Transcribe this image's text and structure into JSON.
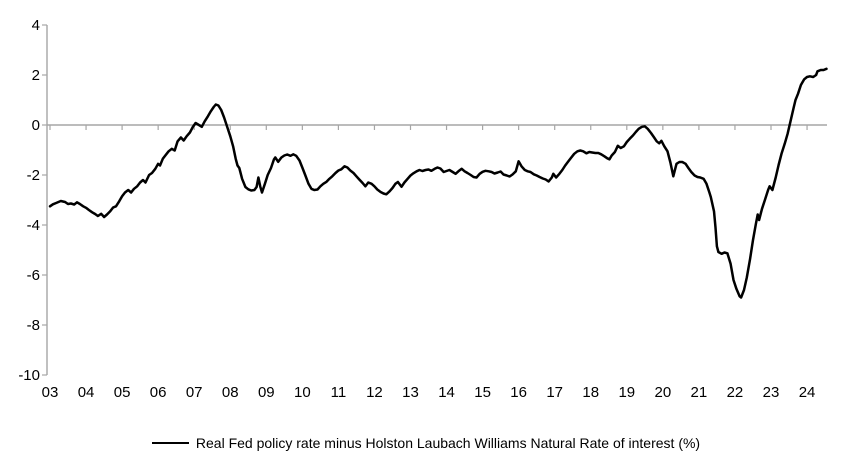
{
  "figure": {
    "background": "#ffffff",
    "axis_color": "#a6a6a6",
    "text_color": "#000000"
  },
  "legend": {
    "label": "Real Fed policy rate minus Holston Laubach Williams Natural Rate of interest (%)"
  },
  "chart_data": {
    "type": "line",
    "title": "",
    "xlabel": "",
    "ylabel": "",
    "grid": "zero-line-only",
    "legend_position": "bottom-center",
    "x_tick_labels": [
      "03",
      "04",
      "05",
      "06",
      "07",
      "08",
      "09",
      "10",
      "11",
      "12",
      "13",
      "14",
      "15",
      "16",
      "17",
      "18",
      "19",
      "20",
      "21",
      "22",
      "23",
      "24"
    ],
    "x_tick_years": [
      2003,
      2004,
      2005,
      2006,
      2007,
      2008,
      2009,
      2010,
      2011,
      2012,
      2013,
      2014,
      2015,
      2016,
      2017,
      2018,
      2019,
      2020,
      2021,
      2022,
      2023,
      2024
    ],
    "y_ticks": [
      4,
      2,
      0,
      -2,
      -4,
      -6,
      -8,
      -10
    ],
    "y_tick_labels": [
      "4",
      "2",
      "0",
      "-2",
      "-4",
      "-6",
      "-8",
      "-10"
    ],
    "ylim": [
      -10,
      4
    ],
    "xlim": [
      2003,
      2024.6
    ],
    "series": [
      {
        "name": "Real Fed policy rate minus Holston Laubach Williams Natural Rate of interest (%)",
        "color": "#000000",
        "line_width": 2.5,
        "points": [
          [
            2003.0,
            -3.25
          ],
          [
            2003.08,
            -3.17
          ],
          [
            2003.17,
            -3.12
          ],
          [
            2003.3,
            -3.04
          ],
          [
            2003.42,
            -3.08
          ],
          [
            2003.5,
            -3.16
          ],
          [
            2003.58,
            -3.14
          ],
          [
            2003.67,
            -3.18
          ],
          [
            2003.75,
            -3.09
          ],
          [
            2003.83,
            -3.16
          ],
          [
            2003.92,
            -3.25
          ],
          [
            2004.0,
            -3.31
          ],
          [
            2004.08,
            -3.4
          ],
          [
            2004.17,
            -3.49
          ],
          [
            2004.25,
            -3.56
          ],
          [
            2004.33,
            -3.64
          ],
          [
            2004.42,
            -3.55
          ],
          [
            2004.5,
            -3.68
          ],
          [
            2004.58,
            -3.58
          ],
          [
            2004.67,
            -3.45
          ],
          [
            2004.75,
            -3.3
          ],
          [
            2004.83,
            -3.25
          ],
          [
            2004.92,
            -3.05
          ],
          [
            2005.0,
            -2.85
          ],
          [
            2005.08,
            -2.7
          ],
          [
            2005.17,
            -2.6
          ],
          [
            2005.25,
            -2.7
          ],
          [
            2005.33,
            -2.55
          ],
          [
            2005.42,
            -2.45
          ],
          [
            2005.5,
            -2.3
          ],
          [
            2005.58,
            -2.2
          ],
          [
            2005.65,
            -2.3
          ],
          [
            2005.75,
            -2.0
          ],
          [
            2005.83,
            -1.92
          ],
          [
            2005.92,
            -1.75
          ],
          [
            2006.0,
            -1.55
          ],
          [
            2006.05,
            -1.62
          ],
          [
            2006.13,
            -1.35
          ],
          [
            2006.21,
            -1.2
          ],
          [
            2006.29,
            -1.05
          ],
          [
            2006.38,
            -0.95
          ],
          [
            2006.46,
            -1.02
          ],
          [
            2006.54,
            -0.65
          ],
          [
            2006.63,
            -0.5
          ],
          [
            2006.71,
            -0.62
          ],
          [
            2006.79,
            -0.45
          ],
          [
            2006.88,
            -0.3
          ],
          [
            2006.96,
            -0.08
          ],
          [
            2007.04,
            0.08
          ],
          [
            2007.13,
            0.0
          ],
          [
            2007.21,
            -0.07
          ],
          [
            2007.29,
            0.15
          ],
          [
            2007.38,
            0.35
          ],
          [
            2007.46,
            0.55
          ],
          [
            2007.54,
            0.72
          ],
          [
            2007.6,
            0.82
          ],
          [
            2007.67,
            0.78
          ],
          [
            2007.75,
            0.6
          ],
          [
            2007.83,
            0.3
          ],
          [
            2007.92,
            -0.1
          ],
          [
            2008.0,
            -0.45
          ],
          [
            2008.08,
            -0.85
          ],
          [
            2008.15,
            -1.35
          ],
          [
            2008.2,
            -1.62
          ],
          [
            2008.25,
            -1.72
          ],
          [
            2008.33,
            -2.15
          ],
          [
            2008.42,
            -2.48
          ],
          [
            2008.5,
            -2.57
          ],
          [
            2008.58,
            -2.62
          ],
          [
            2008.67,
            -2.6
          ],
          [
            2008.73,
            -2.48
          ],
          [
            2008.78,
            -2.1
          ],
          [
            2008.83,
            -2.45
          ],
          [
            2008.88,
            -2.7
          ],
          [
            2008.96,
            -2.35
          ],
          [
            2009.04,
            -2.0
          ],
          [
            2009.13,
            -1.72
          ],
          [
            2009.21,
            -1.38
          ],
          [
            2009.25,
            -1.3
          ],
          [
            2009.33,
            -1.47
          ],
          [
            2009.42,
            -1.3
          ],
          [
            2009.5,
            -1.22
          ],
          [
            2009.58,
            -1.18
          ],
          [
            2009.67,
            -1.23
          ],
          [
            2009.75,
            -1.17
          ],
          [
            2009.83,
            -1.23
          ],
          [
            2009.92,
            -1.42
          ],
          [
            2010.0,
            -1.7
          ],
          [
            2010.08,
            -2.0
          ],
          [
            2010.17,
            -2.35
          ],
          [
            2010.25,
            -2.55
          ],
          [
            2010.33,
            -2.6
          ],
          [
            2010.42,
            -2.58
          ],
          [
            2010.5,
            -2.45
          ],
          [
            2010.58,
            -2.35
          ],
          [
            2010.67,
            -2.27
          ],
          [
            2010.75,
            -2.15
          ],
          [
            2010.83,
            -2.05
          ],
          [
            2010.92,
            -1.92
          ],
          [
            2011.0,
            -1.82
          ],
          [
            2011.08,
            -1.77
          ],
          [
            2011.17,
            -1.65
          ],
          [
            2011.25,
            -1.7
          ],
          [
            2011.33,
            -1.82
          ],
          [
            2011.42,
            -1.92
          ],
          [
            2011.5,
            -2.05
          ],
          [
            2011.58,
            -2.18
          ],
          [
            2011.67,
            -2.32
          ],
          [
            2011.75,
            -2.45
          ],
          [
            2011.83,
            -2.3
          ],
          [
            2011.92,
            -2.35
          ],
          [
            2012.0,
            -2.45
          ],
          [
            2012.08,
            -2.58
          ],
          [
            2012.17,
            -2.68
          ],
          [
            2012.25,
            -2.74
          ],
          [
            2012.33,
            -2.77
          ],
          [
            2012.42,
            -2.65
          ],
          [
            2012.5,
            -2.52
          ],
          [
            2012.58,
            -2.35
          ],
          [
            2012.65,
            -2.28
          ],
          [
            2012.75,
            -2.47
          ],
          [
            2012.83,
            -2.3
          ],
          [
            2012.92,
            -2.15
          ],
          [
            2013.0,
            -2.02
          ],
          [
            2013.08,
            -1.93
          ],
          [
            2013.17,
            -1.85
          ],
          [
            2013.25,
            -1.8
          ],
          [
            2013.33,
            -1.84
          ],
          [
            2013.42,
            -1.8
          ],
          [
            2013.5,
            -1.78
          ],
          [
            2013.58,
            -1.83
          ],
          [
            2013.67,
            -1.75
          ],
          [
            2013.75,
            -1.7
          ],
          [
            2013.83,
            -1.74
          ],
          [
            2013.92,
            -1.88
          ],
          [
            2014.0,
            -1.84
          ],
          [
            2014.08,
            -1.8
          ],
          [
            2014.17,
            -1.88
          ],
          [
            2014.25,
            -1.95
          ],
          [
            2014.33,
            -1.85
          ],
          [
            2014.42,
            -1.75
          ],
          [
            2014.5,
            -1.85
          ],
          [
            2014.58,
            -1.92
          ],
          [
            2014.67,
            -2.0
          ],
          [
            2014.75,
            -2.08
          ],
          [
            2014.83,
            -2.1
          ],
          [
            2014.92,
            -1.95
          ],
          [
            2015.0,
            -1.87
          ],
          [
            2015.08,
            -1.83
          ],
          [
            2015.17,
            -1.85
          ],
          [
            2015.25,
            -1.88
          ],
          [
            2015.33,
            -1.94
          ],
          [
            2015.42,
            -1.9
          ],
          [
            2015.5,
            -1.86
          ],
          [
            2015.58,
            -1.98
          ],
          [
            2015.67,
            -2.02
          ],
          [
            2015.75,
            -2.06
          ],
          [
            2015.83,
            -1.98
          ],
          [
            2015.92,
            -1.85
          ],
          [
            2016.0,
            -1.45
          ],
          [
            2016.08,
            -1.65
          ],
          [
            2016.17,
            -1.8
          ],
          [
            2016.25,
            -1.85
          ],
          [
            2016.33,
            -1.88
          ],
          [
            2016.42,
            -1.97
          ],
          [
            2016.5,
            -2.02
          ],
          [
            2016.58,
            -2.08
          ],
          [
            2016.67,
            -2.14
          ],
          [
            2016.75,
            -2.18
          ],
          [
            2016.83,
            -2.26
          ],
          [
            2016.92,
            -2.1
          ],
          [
            2016.96,
            -1.95
          ],
          [
            2017.04,
            -2.1
          ],
          [
            2017.13,
            -1.95
          ],
          [
            2017.21,
            -1.8
          ],
          [
            2017.29,
            -1.62
          ],
          [
            2017.38,
            -1.45
          ],
          [
            2017.46,
            -1.3
          ],
          [
            2017.54,
            -1.15
          ],
          [
            2017.63,
            -1.05
          ],
          [
            2017.71,
            -1.02
          ],
          [
            2017.79,
            -1.05
          ],
          [
            2017.88,
            -1.13
          ],
          [
            2017.96,
            -1.08
          ],
          [
            2018.04,
            -1.1
          ],
          [
            2018.13,
            -1.12
          ],
          [
            2018.21,
            -1.12
          ],
          [
            2018.29,
            -1.17
          ],
          [
            2018.38,
            -1.25
          ],
          [
            2018.46,
            -1.33
          ],
          [
            2018.52,
            -1.37
          ],
          [
            2018.58,
            -1.22
          ],
          [
            2018.67,
            -1.08
          ],
          [
            2018.75,
            -0.83
          ],
          [
            2018.83,
            -0.92
          ],
          [
            2018.92,
            -0.85
          ],
          [
            2019.0,
            -0.68
          ],
          [
            2019.08,
            -0.55
          ],
          [
            2019.17,
            -0.42
          ],
          [
            2019.25,
            -0.28
          ],
          [
            2019.33,
            -0.15
          ],
          [
            2019.42,
            -0.07
          ],
          [
            2019.5,
            -0.05
          ],
          [
            2019.58,
            -0.15
          ],
          [
            2019.67,
            -0.32
          ],
          [
            2019.75,
            -0.48
          ],
          [
            2019.83,
            -0.65
          ],
          [
            2019.9,
            -0.73
          ],
          [
            2019.96,
            -0.63
          ],
          [
            2020.04,
            -0.85
          ],
          [
            2020.13,
            -1.05
          ],
          [
            2020.21,
            -1.5
          ],
          [
            2020.29,
            -2.05
          ],
          [
            2020.38,
            -1.55
          ],
          [
            2020.46,
            -1.48
          ],
          [
            2020.54,
            -1.48
          ],
          [
            2020.63,
            -1.55
          ],
          [
            2020.71,
            -1.72
          ],
          [
            2020.79,
            -1.88
          ],
          [
            2020.88,
            -2.02
          ],
          [
            2020.96,
            -2.08
          ],
          [
            2021.04,
            -2.1
          ],
          [
            2021.13,
            -2.15
          ],
          [
            2021.21,
            -2.35
          ],
          [
            2021.29,
            -2.7
          ],
          [
            2021.33,
            -2.88
          ],
          [
            2021.42,
            -3.45
          ],
          [
            2021.46,
            -4.1
          ],
          [
            2021.5,
            -4.85
          ],
          [
            2021.54,
            -5.08
          ],
          [
            2021.63,
            -5.15
          ],
          [
            2021.71,
            -5.1
          ],
          [
            2021.79,
            -5.13
          ],
          [
            2021.88,
            -5.55
          ],
          [
            2021.96,
            -6.2
          ],
          [
            2022.04,
            -6.55
          ],
          [
            2022.13,
            -6.85
          ],
          [
            2022.17,
            -6.9
          ],
          [
            2022.25,
            -6.6
          ],
          [
            2022.33,
            -6.1
          ],
          [
            2022.42,
            -5.35
          ],
          [
            2022.5,
            -4.6
          ],
          [
            2022.58,
            -3.95
          ],
          [
            2022.63,
            -3.58
          ],
          [
            2022.67,
            -3.8
          ],
          [
            2022.75,
            -3.35
          ],
          [
            2022.83,
            -3.0
          ],
          [
            2022.92,
            -2.6
          ],
          [
            2022.96,
            -2.45
          ],
          [
            2023.04,
            -2.6
          ],
          [
            2023.13,
            -2.1
          ],
          [
            2023.21,
            -1.6
          ],
          [
            2023.29,
            -1.15
          ],
          [
            2023.38,
            -0.75
          ],
          [
            2023.46,
            -0.35
          ],
          [
            2023.54,
            0.15
          ],
          [
            2023.63,
            0.7
          ],
          [
            2023.68,
            1.0
          ],
          [
            2023.75,
            1.25
          ],
          [
            2023.83,
            1.6
          ],
          [
            2023.92,
            1.83
          ],
          [
            2024.0,
            1.92
          ],
          [
            2024.08,
            1.95
          ],
          [
            2024.17,
            1.92
          ],
          [
            2024.25,
            2.0
          ],
          [
            2024.29,
            2.15
          ],
          [
            2024.38,
            2.2
          ],
          [
            2024.46,
            2.2
          ],
          [
            2024.54,
            2.25
          ]
        ]
      }
    ]
  }
}
